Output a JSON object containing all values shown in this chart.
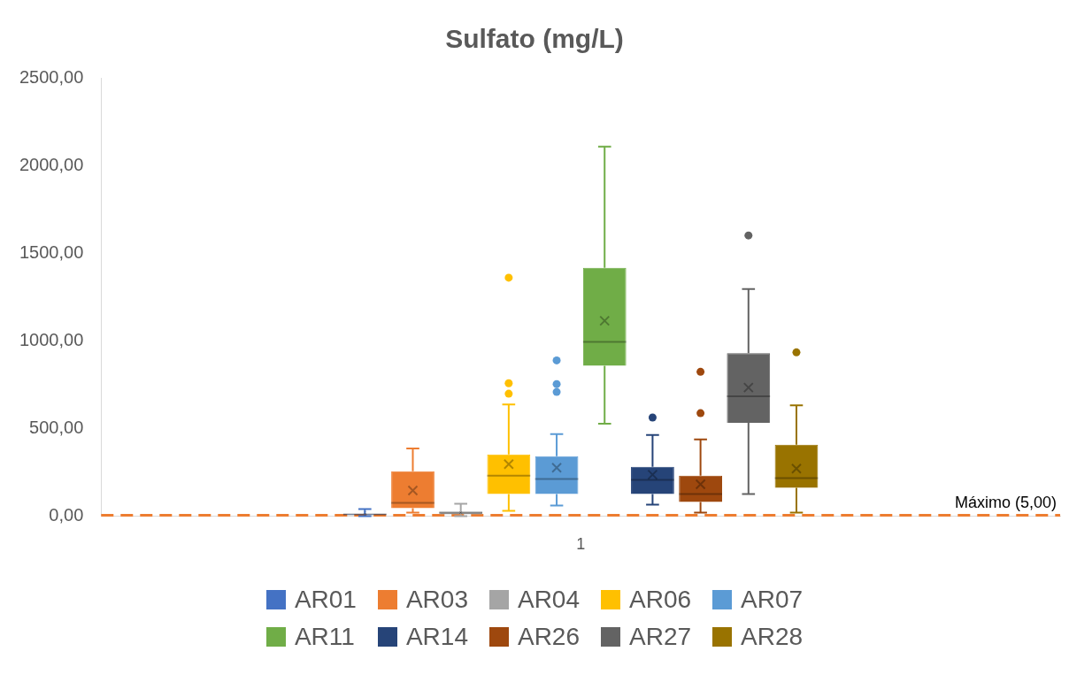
{
  "chart_data": {
    "type": "box",
    "title": "Sulfato (mg/L)",
    "categories": [
      "1"
    ],
    "ylim": [
      0,
      2500
    ],
    "yticks": [
      {
        "value": 0,
        "label": "0,00"
      },
      {
        "value": 500,
        "label": "500,00"
      },
      {
        "value": 1000,
        "label": "1000,00"
      },
      {
        "value": 1500,
        "label": "1500,00"
      },
      {
        "value": 2000,
        "label": "2000,00"
      },
      {
        "value": 2500,
        "label": "2500,00"
      }
    ],
    "grid": false,
    "legend": "bottom",
    "ref_lines": [
      {
        "axis": "y",
        "value": 5,
        "label": "Máximo (5,00)",
        "color": "#ed7d31",
        "line_style": "dashed"
      }
    ],
    "series": [
      {
        "name": "AR01",
        "color": "#4472c4",
        "boxes": [
          {
            "low": 0,
            "q1": 8,
            "median": 10,
            "q3": 12,
            "high": 40,
            "mean": 20
          }
        ]
      },
      {
        "name": "AR03",
        "color": "#ed7d31",
        "boxes": [
          {
            "low": 20,
            "q1": 45,
            "median": 75,
            "q3": 256,
            "high": 386,
            "mean": 146
          }
        ]
      },
      {
        "name": "AR04",
        "color": "#a5a5a5",
        "boxes": [
          {
            "low": 0,
            "q1": 10,
            "median": 20,
            "q3": 25,
            "high": 70,
            "mean": 20
          }
        ]
      },
      {
        "name": "AR06",
        "color": "#ffc000",
        "boxes": [
          {
            "low": 30,
            "q1": 126,
            "median": 231,
            "q3": 351,
            "high": 637,
            "mean": 296,
            "outliers": [
              698,
              758,
              1360
            ]
          }
        ]
      },
      {
        "name": "AR07",
        "color": "#5b9bd5",
        "boxes": [
          {
            "low": 60,
            "q1": 126,
            "median": 211,
            "q3": 341,
            "high": 467,
            "mean": 276,
            "outliers": [
              708,
              753,
              888
            ]
          }
        ]
      },
      {
        "name": "AR11",
        "color": "#70ad47",
        "boxes": [
          {
            "low": 527,
            "q1": 858,
            "median": 994,
            "q3": 1416,
            "high": 2108,
            "mean": 1114
          }
        ]
      },
      {
        "name": "AR14",
        "color": "#264478",
        "boxes": [
          {
            "low": 65,
            "q1": 126,
            "median": 206,
            "q3": 281,
            "high": 462,
            "mean": 236,
            "outliers": [
              562
            ]
          }
        ]
      },
      {
        "name": "AR26",
        "color": "#9e480e",
        "boxes": [
          {
            "low": 20,
            "q1": 80,
            "median": 126,
            "q3": 231,
            "high": 437,
            "mean": 181,
            "outliers": [
              587,
              823
            ]
          }
        ]
      },
      {
        "name": "AR27",
        "color": "#636363",
        "boxes": [
          {
            "low": 126,
            "q1": 532,
            "median": 683,
            "q3": 929,
            "high": 1295,
            "mean": 733,
            "outliers": [
              1601
            ]
          }
        ]
      },
      {
        "name": "AR28",
        "color": "#997300",
        "boxes": [
          {
            "low": 20,
            "q1": 161,
            "median": 216,
            "q3": 407,
            "high": 632,
            "mean": 271,
            "outliers": [
              934
            ]
          }
        ]
      }
    ]
  }
}
